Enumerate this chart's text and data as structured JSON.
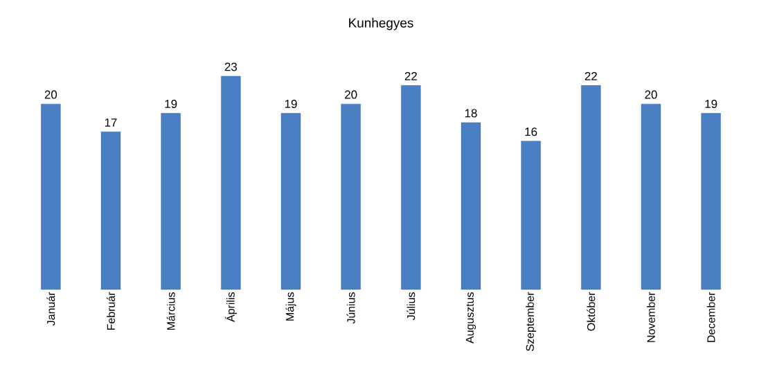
{
  "chart_data": {
    "type": "bar",
    "title": "Kunhegyes",
    "categories": [
      "Január",
      "Február",
      "Március",
      "Április",
      "Május",
      "Június",
      "Július",
      "Augusztus",
      "Szeptember",
      "Október",
      "November",
      "December"
    ],
    "values": [
      20,
      17,
      19,
      23,
      19,
      20,
      22,
      18,
      16,
      22,
      20,
      19
    ],
    "color": "#4a7fc4",
    "data_labels": true
  }
}
